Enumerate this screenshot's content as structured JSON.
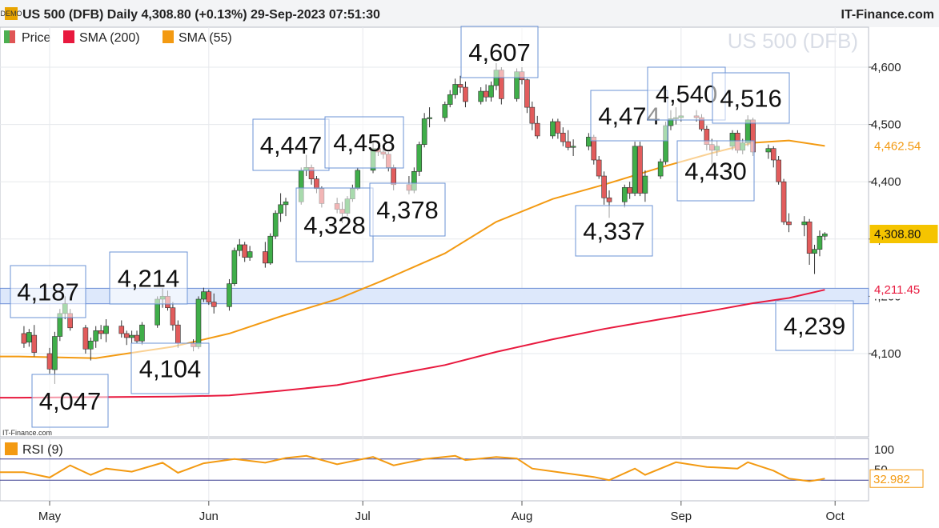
{
  "header": {
    "title": "US 500 (DFB) Daily 4,308.80 (+0.13%) 29-Sep-2023 07:51:30",
    "brand": "IT-Finance.com",
    "demo_badge": "DEMO"
  },
  "watermark": "US 500 (DFB)",
  "source_small": "IT-Finance.com",
  "legend": [
    {
      "name": "Price",
      "color": "#4caf50",
      "color2": "#e05555"
    },
    {
      "name": "SMA (200)",
      "color": "#e8193e"
    },
    {
      "name": "SMA (55)",
      "color": "#f39a12"
    }
  ],
  "chart_data": {
    "type": "candlestick",
    "ylim": [
      4020,
      4680
    ],
    "yticks": [
      "4,600",
      "4,500",
      "4,400",
      "4,300",
      "4,200",
      "4,100"
    ],
    "ytick_values": [
      4600,
      4500,
      4400,
      4300,
      4200,
      4100
    ],
    "xticks": [
      "May",
      "Jun",
      "Jul",
      "Aug",
      "Sep",
      "Oct"
    ],
    "xtick_dates": [
      "2023-05-01",
      "2023-06-01",
      "2023-07-01",
      "2023-08-01",
      "2023-09-01",
      "2023-10-01"
    ],
    "last_price": {
      "label": "4,308.80",
      "value": 4308.8,
      "color": "#f5c400"
    },
    "sma55_last": {
      "label": "4,462.54",
      "value": 4462.54,
      "color": "#f39a12"
    },
    "sma200_last": {
      "label": "4,211.45",
      "value": 4211.45,
      "color": "#e8193e"
    },
    "support_zone": [
      4187,
      4214
    ],
    "candles": [
      [
        "2023-04-26",
        4135,
        4148,
        4110,
        4118
      ],
      [
        "2023-04-27",
        4120,
        4143,
        4112,
        4137
      ],
      [
        "2023-04-28",
        4132,
        4150,
        4095,
        4102
      ],
      [
        "2023-05-01",
        4100,
        4110,
        4065,
        4073
      ],
      [
        "2023-05-02",
        4072,
        4138,
        4047,
        4130
      ],
      [
        "2023-05-03",
        4130,
        4178,
        4122,
        4170
      ],
      [
        "2023-05-04",
        4170,
        4200,
        4160,
        4187
      ],
      [
        "2023-05-05",
        4170,
        4178,
        4140,
        4145
      ],
      [
        "2023-05-08",
        4145,
        4150,
        4100,
        4108
      ],
      [
        "2023-05-09",
        4108,
        4128,
        4088,
        4122
      ],
      [
        "2023-05-10",
        4122,
        4148,
        4110,
        4140
      ],
      [
        "2023-05-11",
        4140,
        4150,
        4125,
        4135
      ],
      [
        "2023-05-12",
        4135,
        4160,
        4120,
        4148
      ],
      [
        "2023-05-15",
        4148,
        4158,
        4128,
        4135
      ],
      [
        "2023-05-16",
        4135,
        4140,
        4115,
        4128
      ],
      [
        "2023-05-17",
        4128,
        4140,
        4118,
        4132
      ],
      [
        "2023-05-18",
        4132,
        4140,
        4118,
        4122
      ],
      [
        "2023-05-19",
        4122,
        4155,
        4115,
        4150
      ],
      [
        "2023-05-22",
        4150,
        4200,
        4145,
        4195
      ],
      [
        "2023-05-23",
        4195,
        4214,
        4180,
        4200
      ],
      [
        "2023-05-24",
        4200,
        4210,
        4175,
        4180
      ],
      [
        "2023-05-25",
        4180,
        4190,
        4140,
        4150
      ],
      [
        "2023-05-26",
        4150,
        4158,
        4110,
        4118
      ],
      [
        "2023-05-29",
        4118,
        4125,
        4104,
        4112
      ],
      [
        "2023-05-30",
        4112,
        4200,
        4108,
        4195
      ],
      [
        "2023-05-31",
        4195,
        4215,
        4190,
        4208
      ],
      [
        "2023-06-01",
        4208,
        4212,
        4185,
        4190
      ],
      [
        "2023-06-02",
        4190,
        4205,
        4170,
        4182
      ],
      [
        "2023-06-05",
        4182,
        4230,
        4175,
        4222
      ],
      [
        "2023-06-06",
        4222,
        4285,
        4218,
        4280
      ],
      [
        "2023-06-07",
        4280,
        4300,
        4270,
        4290
      ],
      [
        "2023-06-08",
        4290,
        4295,
        4260,
        4268
      ],
      [
        "2023-06-09",
        4268,
        4288,
        4262,
        4278
      ],
      [
        "2023-06-12",
        4278,
        4295,
        4250,
        4258
      ],
      [
        "2023-06-13",
        4258,
        4310,
        4255,
        4305
      ],
      [
        "2023-06-14",
        4305,
        4350,
        4300,
        4345
      ],
      [
        "2023-06-15",
        4345,
        4380,
        4330,
        4360
      ],
      [
        "2023-06-16",
        4360,
        4372,
        4340,
        4365
      ],
      [
        "2023-06-19",
        4365,
        4425,
        4360,
        4420
      ],
      [
        "2023-06-20",
        4420,
        4447,
        4410,
        4425
      ],
      [
        "2023-06-21",
        4425,
        4430,
        4395,
        4405
      ],
      [
        "2023-06-22",
        4405,
        4410,
        4380,
        4388
      ],
      [
        "2023-06-23",
        4388,
        4392,
        4355,
        4362
      ],
      [
        "2023-06-26",
        4362,
        4372,
        4345,
        4352
      ],
      [
        "2023-06-27",
        4352,
        4365,
        4328,
        4345
      ],
      [
        "2023-06-28",
        4345,
        4375,
        4340,
        4370
      ],
      [
        "2023-06-29",
        4370,
        4395,
        4365,
        4388
      ],
      [
        "2023-06-30",
        4388,
        4425,
        4385,
        4420
      ],
      [
        "2023-07-03",
        4420,
        4470,
        4415,
        4458
      ],
      [
        "2023-07-04",
        4458,
        4465,
        4445,
        4452
      ],
      [
        "2023-07-05",
        4452,
        4462,
        4440,
        4448
      ],
      [
        "2023-07-06",
        4448,
        4452,
        4418,
        4425
      ],
      [
        "2023-07-07",
        4425,
        4430,
        4385,
        4395
      ],
      [
        "2023-07-10",
        4395,
        4410,
        4378,
        4385
      ],
      [
        "2023-07-11",
        4385,
        4425,
        4380,
        4418
      ],
      [
        "2023-07-12",
        4418,
        4470,
        4410,
        4465
      ],
      [
        "2023-07-13",
        4465,
        4520,
        4460,
        4510
      ],
      [
        "2023-07-14",
        4510,
        4530,
        4495,
        4512
      ],
      [
        "2023-07-17",
        4512,
        4540,
        4505,
        4535
      ],
      [
        "2023-07-18",
        4535,
        4560,
        4530,
        4552
      ],
      [
        "2023-07-19",
        4552,
        4580,
        4545,
        4570
      ],
      [
        "2023-07-20",
        4570,
        4585,
        4555,
        4565
      ],
      [
        "2023-07-21",
        4565,
        4575,
        4530,
        4540
      ],
      [
        "2023-07-24",
        4540,
        4565,
        4535,
        4558
      ],
      [
        "2023-07-25",
        4558,
        4570,
        4540,
        4548
      ],
      [
        "2023-07-26",
        4548,
        4575,
        4540,
        4568
      ],
      [
        "2023-07-27",
        4568,
        4607,
        4560,
        4595
      ],
      [
        "2023-07-28",
        4595,
        4600,
        4535,
        4545
      ],
      [
        "2023-07-31",
        4545,
        4598,
        4540,
        4592
      ],
      [
        "2023-08-01",
        4592,
        4600,
        4570,
        4578
      ],
      [
        "2023-08-02",
        4578,
        4580,
        4520,
        4530
      ],
      [
        "2023-08-03",
        4530,
        4540,
        4490,
        4502
      ],
      [
        "2023-08-04",
        4502,
        4515,
        4475,
        4480
      ],
      [
        "2023-08-07",
        4480,
        4510,
        4475,
        4505
      ],
      [
        "2023-08-08",
        4505,
        4510,
        4475,
        4485
      ],
      [
        "2023-08-09",
        4485,
        4495,
        4462,
        4470
      ],
      [
        "2023-08-10",
        4470,
        4490,
        4455,
        4460
      ],
      [
        "2023-08-11",
        4460,
        4474,
        4445,
        4462
      ],
      [
        "2023-08-14",
        4462,
        4485,
        4455,
        4478
      ],
      [
        "2023-08-15",
        4478,
        4482,
        4430,
        4438
      ],
      [
        "2023-08-16",
        4438,
        4445,
        4405,
        4410
      ],
      [
        "2023-08-17",
        4410,
        4418,
        4360,
        4372
      ],
      [
        "2023-08-18",
        4372,
        4385,
        4337,
        4365
      ],
      [
        "2023-08-21",
        4365,
        4395,
        4355,
        4390
      ],
      [
        "2023-08-22",
        4390,
        4400,
        4370,
        4380
      ],
      [
        "2023-08-23",
        4380,
        4470,
        4375,
        4462
      ],
      [
        "2023-08-24",
        4462,
        4470,
        4375,
        4380
      ],
      [
        "2023-08-25",
        4380,
        4420,
        4365,
        4410
      ],
      [
        "2023-08-28",
        4410,
        4440,
        4405,
        4435
      ],
      [
        "2023-08-29",
        4435,
        4505,
        4430,
        4498
      ],
      [
        "2023-08-30",
        4498,
        4525,
        4490,
        4510
      ],
      [
        "2023-08-31",
        4510,
        4530,
        4500,
        4512
      ],
      [
        "2023-09-01",
        4512,
        4540,
        4505,
        4515
      ],
      [
        "2023-09-04",
        4515,
        4525,
        4505,
        4512
      ],
      [
        "2023-09-05",
        4512,
        4518,
        4488,
        4492
      ],
      [
        "2023-09-06",
        4492,
        4498,
        4455,
        4465
      ],
      [
        "2023-09-07",
        4465,
        4475,
        4430,
        4455
      ],
      [
        "2023-09-08",
        4455,
        4472,
        4445,
        4462
      ],
      [
        "2023-09-11",
        4462,
        4490,
        4455,
        4485
      ],
      [
        "2023-09-12",
        4485,
        4490,
        4450,
        4455
      ],
      [
        "2023-09-13",
        4455,
        4475,
        4448,
        4468
      ],
      [
        "2023-09-14",
        4468,
        4516,
        4462,
        4508
      ],
      [
        "2023-09-15",
        4508,
        4512,
        4445,
        4452
      ],
      [
        "2023-09-18",
        4452,
        4465,
        4440,
        4458
      ],
      [
        "2023-09-19",
        4458,
        4462,
        4425,
        4438
      ],
      [
        "2023-09-20",
        4438,
        4445,
        4395,
        4400
      ],
      [
        "2023-09-21",
        4400,
        4405,
        4325,
        4330
      ],
      [
        "2023-09-22",
        4330,
        4345,
        4312,
        4325
      ],
      [
        "2023-09-25",
        4325,
        4340,
        4305,
        4330
      ],
      [
        "2023-09-26",
        4330,
        4335,
        4255,
        4275
      ],
      [
        "2023-09-27",
        4275,
        4290,
        4239,
        4282
      ],
      [
        "2023-09-28",
        4282,
        4315,
        4270,
        4305
      ],
      [
        "2023-09-29",
        4305,
        4312,
        4298,
        4309
      ]
    ],
    "sma55": [
      [
        "2023-04-25",
        4095
      ],
      [
        "2023-05-10",
        4092
      ],
      [
        "2023-05-25",
        4112
      ],
      [
        "2023-06-05",
        4135
      ],
      [
        "2023-06-15",
        4165
      ],
      [
        "2023-06-26",
        4195
      ],
      [
        "2023-07-05",
        4228
      ],
      [
        "2023-07-17",
        4275
      ],
      [
        "2023-07-27",
        4330
      ],
      [
        "2023-08-07",
        4370
      ],
      [
        "2023-08-17",
        4395
      ],
      [
        "2023-08-28",
        4425
      ],
      [
        "2023-09-07",
        4450
      ],
      [
        "2023-09-15",
        4468
      ],
      [
        "2023-09-22",
        4472
      ],
      [
        "2023-09-29",
        4462.54
      ]
    ],
    "sma200": [
      [
        "2023-04-25",
        4023
      ],
      [
        "2023-05-10",
        4024
      ],
      [
        "2023-05-25",
        4025
      ],
      [
        "2023-06-05",
        4027
      ],
      [
        "2023-06-15",
        4035
      ],
      [
        "2023-06-26",
        4045
      ],
      [
        "2023-07-05",
        4060
      ],
      [
        "2023-07-17",
        4080
      ],
      [
        "2023-07-27",
        4103
      ],
      [
        "2023-08-07",
        4125
      ],
      [
        "2023-08-17",
        4143
      ],
      [
        "2023-08-28",
        4160
      ],
      [
        "2023-09-07",
        4175
      ],
      [
        "2023-09-15",
        4188
      ],
      [
        "2023-09-22",
        4197
      ],
      [
        "2023-09-29",
        4211.45
      ]
    ],
    "annotations": [
      {
        "label": "4,187"
      },
      {
        "label": "4,047"
      },
      {
        "label": "4,214"
      },
      {
        "label": "4,104"
      },
      {
        "label": "4,447"
      },
      {
        "label": "4,328"
      },
      {
        "label": "4,458"
      },
      {
        "label": "4,378"
      },
      {
        "label": "4,607"
      },
      {
        "label": "4,474"
      },
      {
        "label": "4,337"
      },
      {
        "label": "4,540"
      },
      {
        "label": "4,516"
      },
      {
        "label": "4,430"
      },
      {
        "label": "4,239"
      }
    ],
    "rsi": {
      "name": "RSI (9)",
      "color": "#f39a12",
      "last_label": "32.982",
      "last_value": 32.982,
      "yticks": [
        "100",
        "50"
      ],
      "levels": [
        70,
        30
      ],
      "values": [
        [
          "2023-04-26",
          45
        ],
        [
          "2023-05-01",
          35
        ],
        [
          "2023-05-05",
          58
        ],
        [
          "2023-05-09",
          40
        ],
        [
          "2023-05-12",
          52
        ],
        [
          "2023-05-17",
          46
        ],
        [
          "2023-05-23",
          63
        ],
        [
          "2023-05-26",
          44
        ],
        [
          "2023-05-31",
          62
        ],
        [
          "2023-06-06",
          70
        ],
        [
          "2023-06-12",
          63
        ],
        [
          "2023-06-16",
          72
        ],
        [
          "2023-06-20",
          76
        ],
        [
          "2023-06-26",
          60
        ],
        [
          "2023-07-03",
          74
        ],
        [
          "2023-07-07",
          58
        ],
        [
          "2023-07-13",
          70
        ],
        [
          "2023-07-19",
          76
        ],
        [
          "2023-07-21",
          68
        ],
        [
          "2023-07-27",
          74
        ],
        [
          "2023-07-31",
          71
        ],
        [
          "2023-08-03",
          52
        ],
        [
          "2023-08-09",
          44
        ],
        [
          "2023-08-15",
          36
        ],
        [
          "2023-08-18",
          30
        ],
        [
          "2023-08-23",
          52
        ],
        [
          "2023-08-25",
          40
        ],
        [
          "2023-08-31",
          64
        ],
        [
          "2023-09-06",
          55
        ],
        [
          "2023-09-12",
          52
        ],
        [
          "2023-09-14",
          64
        ],
        [
          "2023-09-19",
          48
        ],
        [
          "2023-09-22",
          33
        ],
        [
          "2023-09-26",
          28
        ],
        [
          "2023-09-28",
          31
        ],
        [
          "2023-09-29",
          32.98
        ]
      ]
    }
  }
}
